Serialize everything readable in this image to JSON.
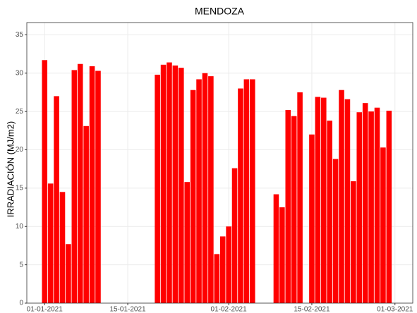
{
  "chart_data": {
    "type": "bar",
    "title": "MENDOZA",
    "y_label": "IRRADIACIÓN (MJ/m2)",
    "x": [
      "2021-01-01",
      "2021-01-02",
      "2021-01-03",
      "2021-01-04",
      "2021-01-05",
      "2021-01-06",
      "2021-01-07",
      "2021-01-08",
      "2021-01-09",
      "2021-01-10",
      "2021-01-20",
      "2021-01-21",
      "2021-01-22",
      "2021-01-23",
      "2021-01-24",
      "2021-01-25",
      "2021-01-26",
      "2021-01-27",
      "2021-01-28",
      "2021-01-29",
      "2021-01-30",
      "2021-01-31",
      "2021-02-01",
      "2021-02-02",
      "2021-02-03",
      "2021-02-04",
      "2021-02-05",
      "2021-02-09",
      "2021-02-10",
      "2021-02-11",
      "2021-02-12",
      "2021-02-13",
      "2021-02-15",
      "2021-02-16",
      "2021-02-17",
      "2021-02-18",
      "2021-02-19",
      "2021-02-20",
      "2021-02-21",
      "2021-02-22",
      "2021-02-23",
      "2021-02-24",
      "2021-02-25",
      "2021-02-26",
      "2021-02-27",
      "2021-02-28"
    ],
    "values": [
      31.7,
      15.6,
      27.0,
      14.5,
      7.7,
      30.4,
      31.2,
      23.1,
      30.9,
      30.3,
      29.8,
      31.1,
      31.4,
      31.0,
      30.7,
      15.8,
      27.8,
      29.2,
      30.0,
      29.6,
      6.4,
      8.7,
      10.0,
      17.6,
      28.0,
      29.2,
      29.2,
      14.2,
      12.5,
      25.2,
      24.4,
      27.5,
      22.0,
      26.9,
      26.8,
      23.8,
      18.8,
      27.8,
      26.6,
      15.9,
      24.9,
      26.1,
      25.0,
      25.5,
      20.3,
      25.1
    ],
    "color": "#ff0000",
    "xlim": [
      "2020-12-29",
      "2021-03-04"
    ],
    "xticks": [
      {
        "value": "2021-01-01",
        "label": "01-01-2021"
      },
      {
        "value": "2021-01-15",
        "label": "15-01-2021"
      },
      {
        "value": "2021-02-01",
        "label": "01-02-2021"
      },
      {
        "value": "2021-02-15",
        "label": "15-02-2021"
      },
      {
        "value": "2021-03-01",
        "label": "01-03-2021"
      }
    ],
    "ylim": [
      0,
      36.6
    ],
    "yticks": [
      0,
      5,
      10,
      15,
      20,
      25,
      30,
      35
    ],
    "grid": true
  }
}
